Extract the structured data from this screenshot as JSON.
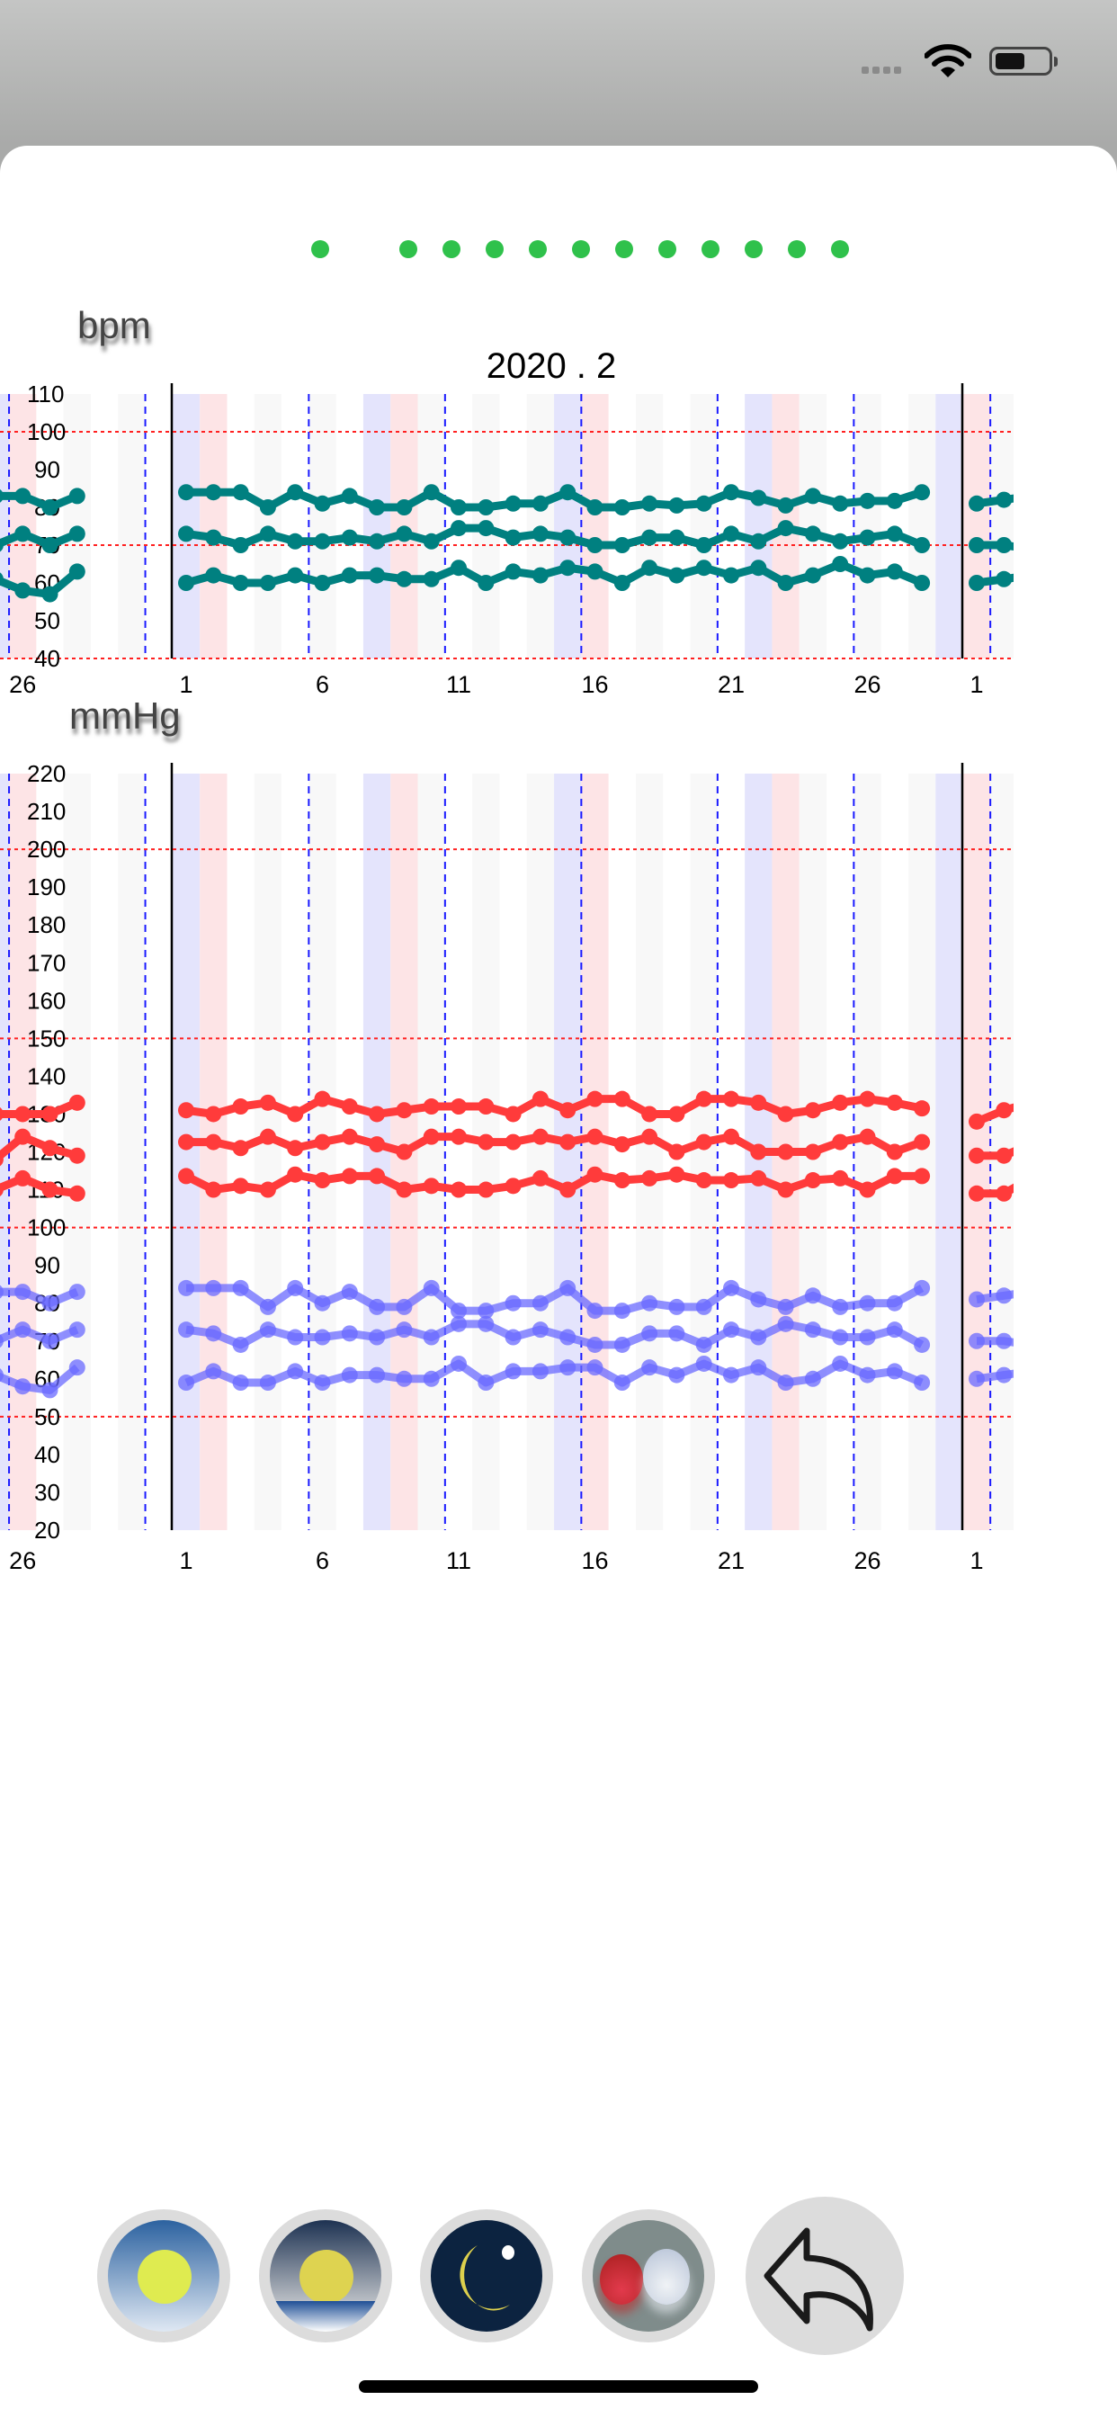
{
  "status_bar": {
    "icons": [
      "signal-icon",
      "wifi-icon",
      "battery-icon"
    ]
  },
  "pager": {
    "count": 12,
    "active_index": 0,
    "color": "#2fc14b"
  },
  "heart_chart": {
    "unit": "bpm",
    "title": "2020 . 2"
  },
  "bp_chart": {
    "unit": "mmHg"
  },
  "chart_data": [
    {
      "type": "line",
      "name": "heart-rate",
      "ylabel": "bpm",
      "title": "2020 . 2",
      "ylim": [
        40,
        110
      ],
      "yticks": [
        110,
        100,
        90,
        80,
        70,
        60,
        50,
        40
      ],
      "ref_lines": [
        100,
        70,
        40
      ],
      "xtick_labels": [
        {
          "month": "jan",
          "day": 26,
          "label": "26"
        },
        {
          "month": "feb",
          "day": 1,
          "label": "1"
        },
        {
          "month": "feb",
          "day": 6,
          "label": "6"
        },
        {
          "month": "feb",
          "day": 11,
          "label": "11"
        },
        {
          "month": "feb",
          "day": 16,
          "label": "16"
        },
        {
          "month": "feb",
          "day": 21,
          "label": "21"
        },
        {
          "month": "feb",
          "day": 26,
          "label": "26"
        },
        {
          "month": "mar",
          "day": 1,
          "label": "1"
        }
      ],
      "color": "#008080",
      "series": [
        {
          "name": "hr-high",
          "jan": [
            83,
            83,
            80,
            83
          ],
          "feb": [
            84,
            84,
            84,
            80,
            84,
            81,
            83,
            80,
            80,
            84,
            80,
            80,
            81,
            81,
            84,
            80,
            80,
            81,
            80.5,
            81,
            84,
            82.5,
            80.5,
            83,
            81,
            81.7,
            81.7,
            84
          ],
          "mar": [
            81,
            82,
            83
          ]
        },
        {
          "name": "hr-mid",
          "jan": [
            70,
            73,
            70,
            73
          ],
          "feb": [
            73,
            72,
            70,
            73,
            71,
            71,
            72,
            71,
            73,
            71,
            74.5,
            74.5,
            72,
            73,
            72,
            70,
            70,
            72,
            72,
            70,
            73,
            71,
            74.5,
            73,
            71,
            72,
            73,
            70
          ],
          "mar": [
            70,
            70,
            69
          ]
        },
        {
          "name": "hr-low",
          "jan": [
            61,
            58,
            57,
            63
          ],
          "feb": [
            60,
            62,
            60,
            60,
            62,
            60,
            62,
            62,
            61,
            61,
            64,
            60,
            63,
            62,
            64,
            63,
            60,
            64,
            62,
            64,
            62,
            64,
            60,
            62,
            65,
            62,
            63,
            60
          ],
          "mar": [
            60,
            61,
            62
          ]
        }
      ]
    },
    {
      "type": "line",
      "name": "blood-pressure",
      "ylabel": "mmHg",
      "ylim": [
        20,
        220
      ],
      "yticks": [
        220,
        210,
        200,
        190,
        180,
        170,
        160,
        150,
        140,
        130,
        120,
        110,
        100,
        90,
        80,
        70,
        60,
        50,
        40,
        30,
        20
      ],
      "ref_lines": [
        200,
        150,
        100,
        50
      ],
      "xtick_labels": [
        {
          "month": "jan",
          "day": 26,
          "label": "26"
        },
        {
          "month": "feb",
          "day": 1,
          "label": "1"
        },
        {
          "month": "feb",
          "day": 6,
          "label": "6"
        },
        {
          "month": "feb",
          "day": 11,
          "label": "11"
        },
        {
          "month": "feb",
          "day": 16,
          "label": "16"
        },
        {
          "month": "feb",
          "day": 21,
          "label": "21"
        },
        {
          "month": "feb",
          "day": 26,
          "label": "26"
        },
        {
          "month": "mar",
          "day": 1,
          "label": "1"
        }
      ],
      "series": [
        {
          "name": "systolic-high",
          "color": "#ff3b3b",
          "jan": [
            130,
            130,
            130,
            133
          ],
          "feb": [
            131,
            130,
            132,
            133,
            130,
            134,
            132,
            130,
            131,
            132,
            132,
            132,
            130,
            134,
            131,
            134,
            134,
            130,
            130,
            134,
            134,
            133,
            130,
            131,
            133,
            134,
            133,
            131.5
          ],
          "mar": [
            128,
            131,
            133
          ]
        },
        {
          "name": "systolic-mid",
          "color": "#ff3b3b",
          "jan": [
            118,
            124,
            121,
            119
          ],
          "feb": [
            122.6,
            122.6,
            121,
            124,
            121,
            122.6,
            124,
            122,
            120,
            124,
            124,
            122.6,
            122.6,
            124,
            122.6,
            124,
            122,
            124,
            120,
            122.6,
            124,
            120,
            120,
            120,
            122.6,
            124,
            120,
            122.6
          ],
          "mar": [
            119,
            119,
            122
          ]
        },
        {
          "name": "systolic-low",
          "color": "#ff3b3b",
          "jan": [
            110,
            113,
            110,
            109
          ],
          "feb": [
            113.6,
            110,
            111,
            110,
            114,
            112.5,
            113.6,
            113.6,
            110,
            111,
            110,
            110,
            111,
            113,
            110,
            114,
            112.5,
            113,
            114,
            112.5,
            112.5,
            113,
            110,
            112.5,
            113,
            110,
            113.6,
            113.6
          ],
          "mar": [
            109,
            109,
            113
          ]
        },
        {
          "name": "diastolic-high",
          "color": "#6a6aff",
          "jan": [
            83,
            83,
            80,
            83
          ],
          "feb": [
            84,
            84,
            84,
            79,
            84,
            80,
            83,
            79,
            79,
            84,
            78,
            78,
            80,
            80,
            84,
            78,
            78,
            80,
            79,
            79,
            84,
            81,
            79,
            82,
            79,
            80,
            80,
            84
          ],
          "mar": [
            81,
            82,
            83
          ]
        },
        {
          "name": "diastolic-mid",
          "color": "#6a6aff",
          "jan": [
            70,
            73,
            70,
            73
          ],
          "feb": [
            73,
            72,
            69,
            73,
            71,
            71,
            72,
            71,
            73,
            71,
            74.5,
            74.5,
            71,
            73,
            71,
            69,
            69,
            72,
            72,
            69,
            73,
            71,
            74.5,
            73,
            71,
            71,
            73,
            69
          ],
          "mar": [
            70,
            70,
            69
          ]
        },
        {
          "name": "diastolic-low",
          "color": "#6a6aff",
          "jan": [
            61,
            58,
            57,
            63
          ],
          "feb": [
            59,
            62,
            59,
            59,
            62,
            59,
            61,
            61,
            60,
            60,
            64,
            59,
            62,
            62,
            63,
            63,
            59,
            63,
            61,
            64,
            61,
            63,
            59,
            60,
            64,
            61,
            62,
            59
          ],
          "mar": [
            60,
            61,
            62
          ]
        }
      ]
    }
  ],
  "toolbar": {
    "buttons": [
      {
        "name": "morning-button",
        "icon": "sun-icon"
      },
      {
        "name": "evening-button",
        "icon": "sunset-icon"
      },
      {
        "name": "night-button",
        "icon": "moon-icon"
      },
      {
        "name": "pills-button",
        "icon": "pills-icon"
      },
      {
        "name": "back-button",
        "icon": "undo-arrow-icon"
      }
    ]
  }
}
